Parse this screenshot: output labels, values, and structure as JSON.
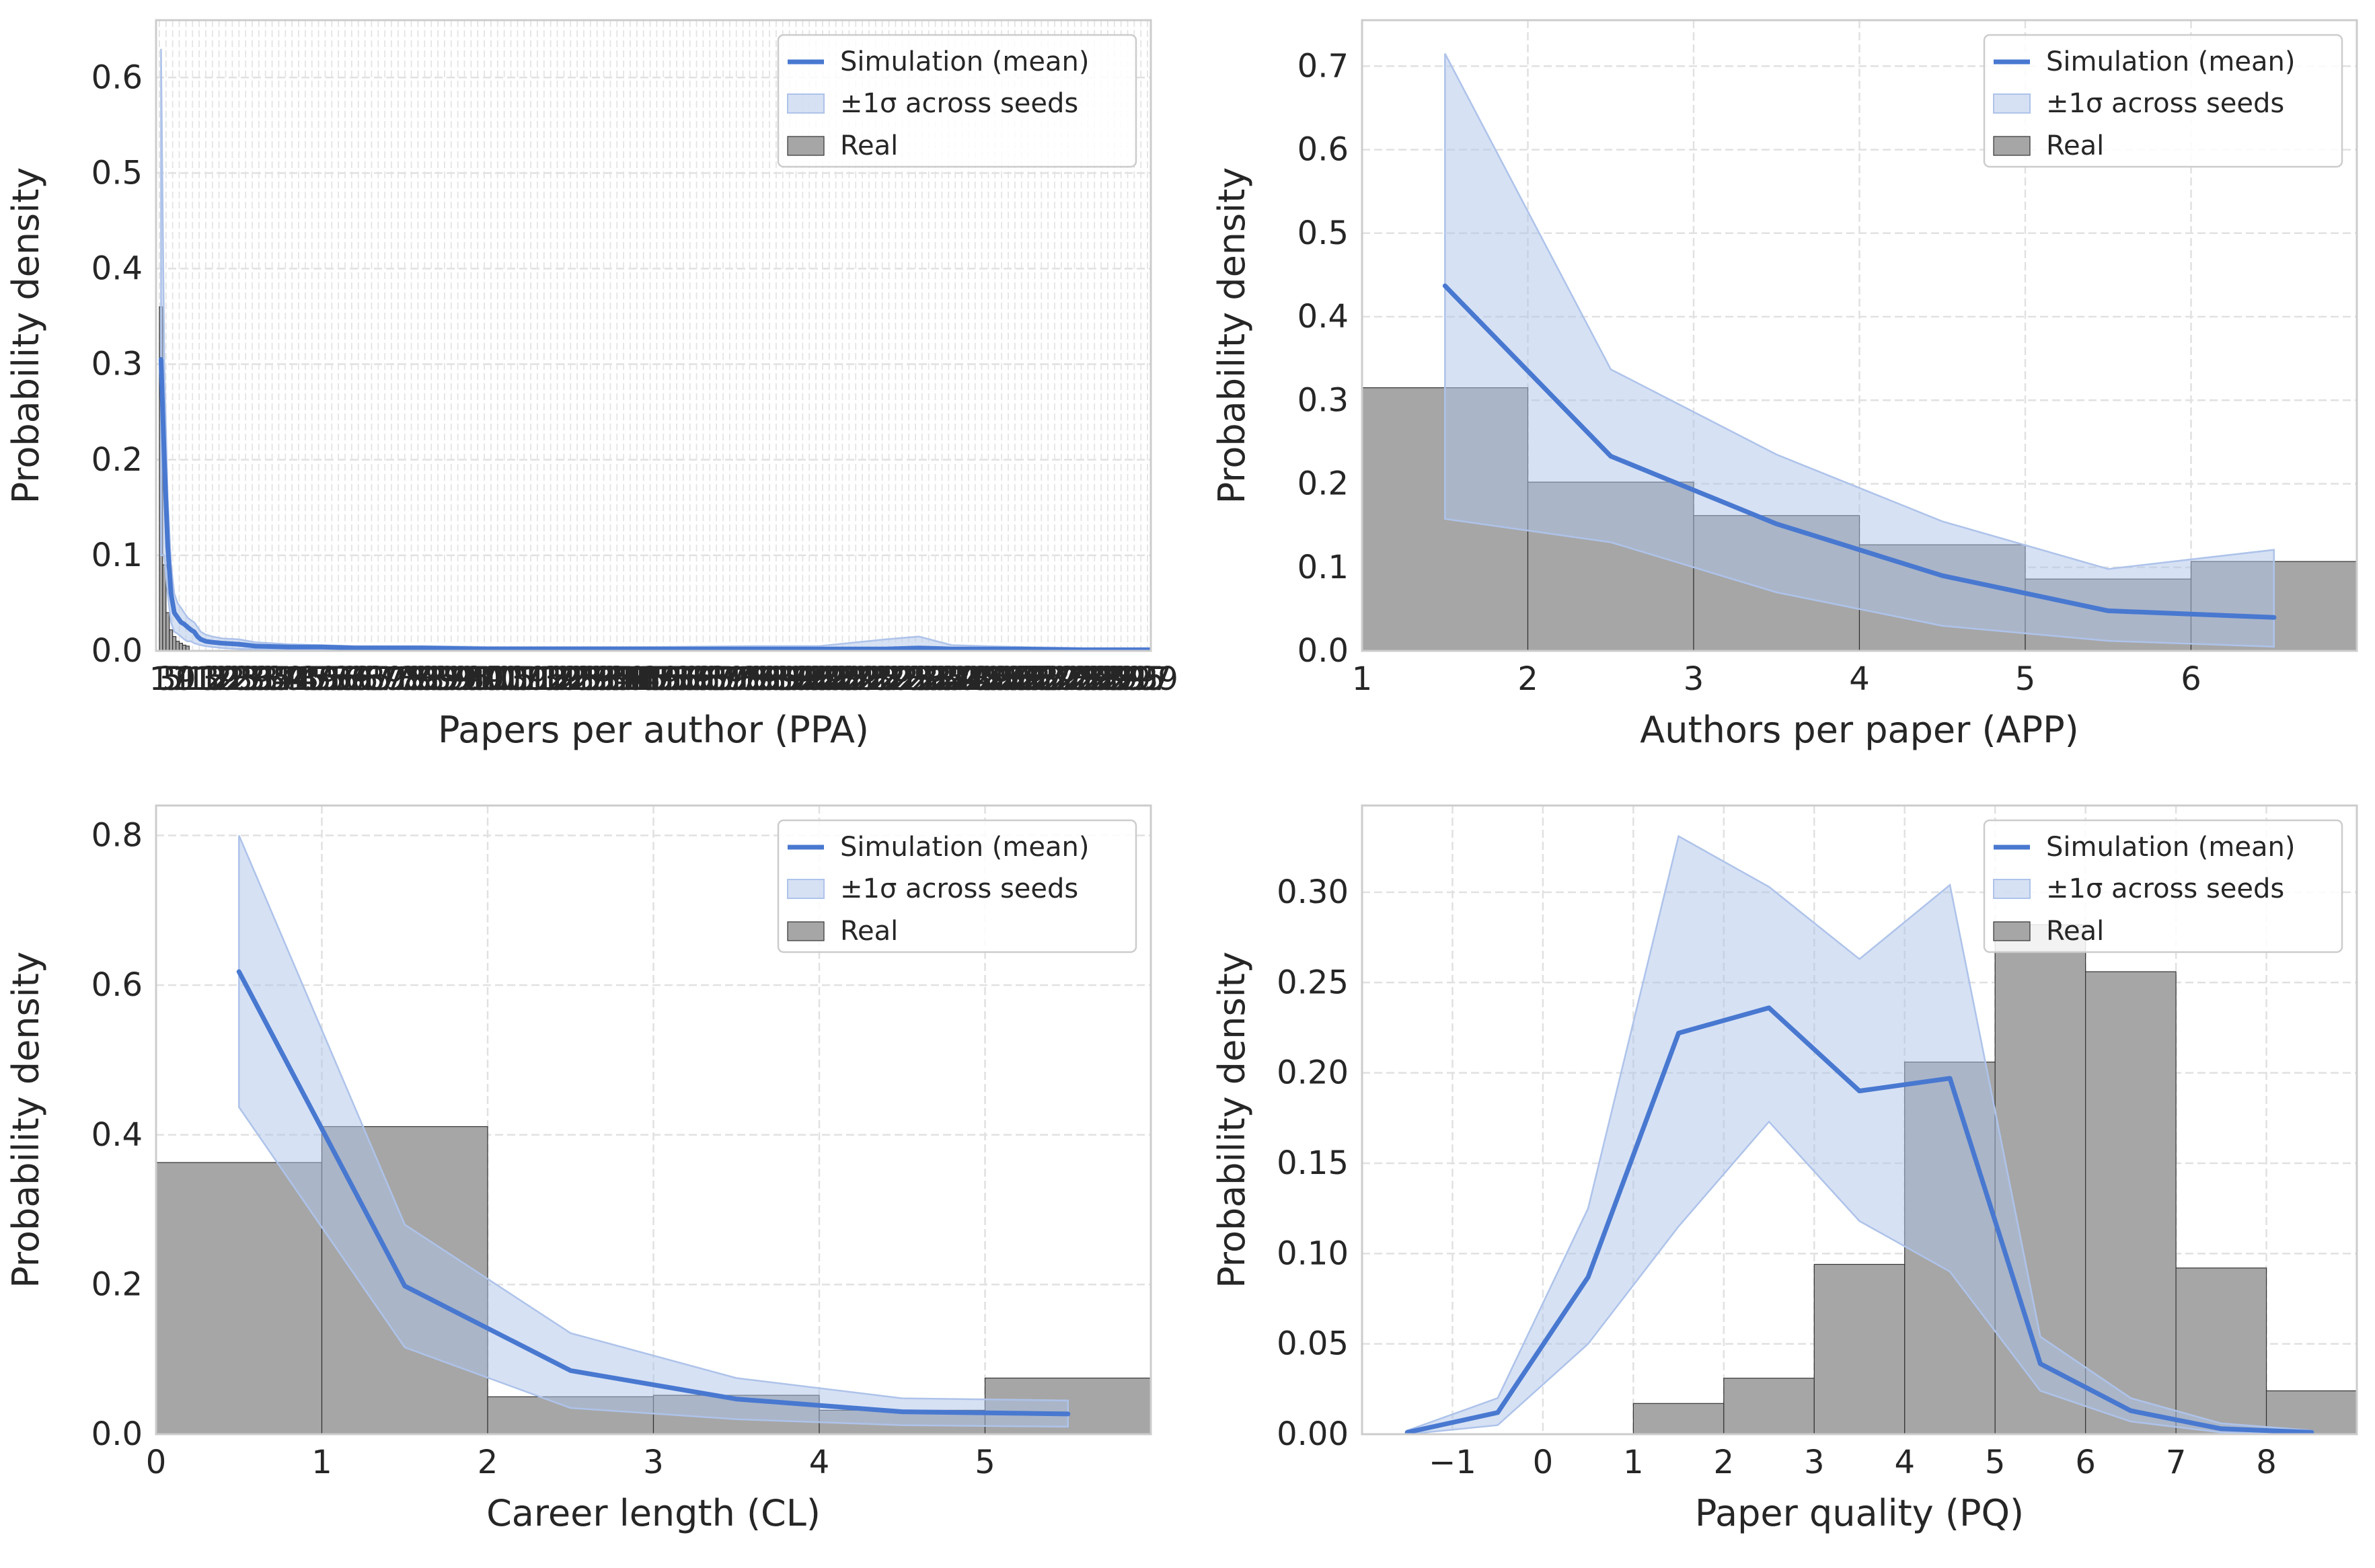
{
  "colors": {
    "simulation_line": "#4878d0",
    "band_fill": "#aec3ea",
    "real_fill": "#a6a6a6",
    "real_edge": "#333333",
    "grid": "#e1e1e1",
    "spine": "#cccccc"
  },
  "legend_entries": {
    "simulation": "Simulation (mean)",
    "band": "±1σ across seeds",
    "real": "Real"
  },
  "chart_data": [
    {
      "id": "ppa",
      "type": "line",
      "xlabel": "Papers per author (PPA)",
      "ylabel": "Probability density",
      "xlim": [
        0,
        300
      ],
      "ylim": [
        0,
        0.66
      ],
      "xticks_dense": true,
      "xtick_labels": [
        "0",
        "10",
        "20",
        "30",
        "40",
        "50",
        "60",
        "70",
        "80",
        "90",
        "100",
        "110",
        "120",
        "130",
        "140",
        "150",
        "160",
        "170",
        "180",
        "190",
        "200",
        "210",
        "220",
        "230",
        "240",
        "250",
        "260",
        "270",
        "280",
        "290",
        "300"
      ],
      "yticks": [
        0.0,
        0.1,
        0.2,
        0.3,
        0.4,
        0.5,
        0.6
      ],
      "ytick_labels": [
        "0.0",
        "0.1",
        "0.2",
        "0.3",
        "0.4",
        "0.5",
        "0.6"
      ],
      "grid": true,
      "legend_position": "top-right",
      "real": {
        "edges": [
          1,
          2,
          3,
          4,
          5,
          6,
          7,
          8,
          9,
          10
        ],
        "values": [
          0.36,
          0.09,
          0.04,
          0.022,
          0.015,
          0.01,
          0.008,
          0.006,
          0.005
        ]
      },
      "simulation": {
        "x": [
          1.5,
          2.5,
          3.5,
          4.5,
          5.5,
          6.5,
          7.5,
          8.5,
          9.5,
          10.5,
          11.5,
          12.5,
          13.5,
          15,
          17,
          20,
          25,
          30,
          40,
          50,
          60,
          80,
          100,
          120,
          150,
          180,
          200,
          220,
          230,
          240,
          260,
          280,
          300
        ],
        "mean": [
          0.305,
          0.2,
          0.11,
          0.06,
          0.04,
          0.035,
          0.03,
          0.028,
          0.025,
          0.022,
          0.02,
          0.015,
          0.012,
          0.01,
          0.009,
          0.008,
          0.007,
          0.005,
          0.004,
          0.004,
          0.003,
          0.003,
          0.002,
          0.002,
          0.002,
          0.002,
          0.002,
          0.002,
          0.003,
          0.002,
          0.002,
          0.001,
          0.001
        ],
        "lower": [
          0.1,
          0.1,
          0.06,
          0.03,
          0.02,
          0.018,
          0.015,
          0.012,
          0.01,
          0.01,
          0.008,
          0.007,
          0.006,
          0.005,
          0.004,
          0.003,
          0.002,
          0.002,
          0.001,
          0.001,
          0.001,
          0.001,
          0.0,
          0.0,
          0.0,
          0.0,
          0.0,
          0.0,
          0.0,
          0.0,
          0.0,
          0.0,
          0.0
        ],
        "upper": [
          0.63,
          0.3,
          0.16,
          0.09,
          0.06,
          0.05,
          0.045,
          0.04,
          0.035,
          0.032,
          0.03,
          0.025,
          0.02,
          0.017,
          0.015,
          0.013,
          0.012,
          0.009,
          0.007,
          0.006,
          0.005,
          0.005,
          0.004,
          0.004,
          0.004,
          0.005,
          0.005,
          0.012,
          0.015,
          0.006,
          0.004,
          0.003,
          0.003
        ]
      }
    },
    {
      "id": "app",
      "type": "line",
      "xlabel": "Authors per paper (APP)",
      "ylabel": "Probability density",
      "xlim": [
        1,
        7
      ],
      "ylim": [
        0,
        0.755
      ],
      "xticks": [
        1,
        2,
        3,
        4,
        5,
        6
      ],
      "xtick_labels": [
        "1",
        "2",
        "3",
        "4",
        "5",
        "6"
      ],
      "yticks": [
        0.0,
        0.1,
        0.2,
        0.3,
        0.4,
        0.5,
        0.6,
        0.7
      ],
      "ytick_labels": [
        "0.0",
        "0.1",
        "0.2",
        "0.3",
        "0.4",
        "0.5",
        "0.6",
        "0.7"
      ],
      "grid": true,
      "legend_position": "top-right",
      "real": {
        "edges": [
          1,
          2,
          3,
          4,
          5,
          6,
          7
        ],
        "values": [
          0.315,
          0.202,
          0.162,
          0.127,
          0.086,
          0.107
        ]
      },
      "simulation": {
        "x": [
          1.5,
          2.5,
          3.5,
          4.5,
          5.5,
          6.5
        ],
        "mean": [
          0.437,
          0.233,
          0.152,
          0.09,
          0.048,
          0.04
        ],
        "lower": [
          0.158,
          0.13,
          0.07,
          0.03,
          0.012,
          0.005
        ],
        "upper": [
          0.715,
          0.337,
          0.235,
          0.155,
          0.098,
          0.121
        ]
      }
    },
    {
      "id": "cl",
      "type": "line",
      "xlabel": "Career length (CL)",
      "ylabel": "Probability density",
      "xlim": [
        0,
        6
      ],
      "ylim": [
        0,
        0.84
      ],
      "xticks": [
        0,
        1,
        2,
        3,
        4,
        5
      ],
      "xtick_labels": [
        "0",
        "1",
        "2",
        "3",
        "4",
        "5"
      ],
      "yticks": [
        0.0,
        0.2,
        0.4,
        0.6,
        0.8
      ],
      "ytick_labels": [
        "0.0",
        "0.2",
        "0.4",
        "0.6",
        "0.8"
      ],
      "grid": true,
      "legend_position": "top-right",
      "real": {
        "edges": [
          0,
          1,
          2,
          3,
          4,
          5,
          6
        ],
        "values": [
          0.363,
          0.411,
          0.05,
          0.052,
          0.032,
          0.075
        ]
      },
      "simulation": {
        "x": [
          0.5,
          1.5,
          2.5,
          3.5,
          4.5,
          5.5
        ],
        "mean": [
          0.618,
          0.198,
          0.085,
          0.047,
          0.03,
          0.027
        ],
        "lower": [
          0.437,
          0.116,
          0.035,
          0.02,
          0.012,
          0.01
        ],
        "upper": [
          0.8,
          0.28,
          0.135,
          0.075,
          0.048,
          0.045
        ]
      }
    },
    {
      "id": "pq",
      "type": "line",
      "xlabel": "Paper quality (PQ)",
      "ylabel": "Probability density",
      "xlim": [
        -2,
        9
      ],
      "ylim": [
        0,
        0.348
      ],
      "xticks": [
        -1,
        0,
        1,
        2,
        3,
        4,
        5,
        6,
        7,
        8
      ],
      "xtick_labels": [
        "−1",
        "0",
        "1",
        "2",
        "3",
        "4",
        "5",
        "6",
        "7",
        "8"
      ],
      "yticks": [
        0.0,
        0.05,
        0.1,
        0.15,
        0.2,
        0.25,
        0.3
      ],
      "ytick_labels": [
        "0.00",
        "0.05",
        "0.10",
        "0.15",
        "0.20",
        "0.25",
        "0.30"
      ],
      "grid": true,
      "legend_position": "top-right",
      "real": {
        "edges": [
          1,
          2,
          3,
          4,
          5,
          6,
          7,
          8,
          9
        ],
        "values": [
          0.017,
          0.031,
          0.094,
          0.206,
          0.282,
          0.256,
          0.092,
          0.024
        ]
      },
      "simulation": {
        "x": [
          -1.5,
          -0.5,
          0.5,
          1.5,
          2.5,
          3.5,
          4.5,
          5.5,
          6.5,
          7.5,
          8.5
        ],
        "mean": [
          0.001,
          0.012,
          0.087,
          0.222,
          0.236,
          0.19,
          0.197,
          0.039,
          0.013,
          0.003,
          0.001
        ],
        "lower": [
          0.0,
          0.005,
          0.05,
          0.115,
          0.173,
          0.118,
          0.09,
          0.024,
          0.007,
          0.001,
          0.0
        ],
        "upper": [
          0.002,
          0.02,
          0.125,
          0.331,
          0.303,
          0.263,
          0.304,
          0.054,
          0.02,
          0.006,
          0.002
        ]
      }
    }
  ]
}
